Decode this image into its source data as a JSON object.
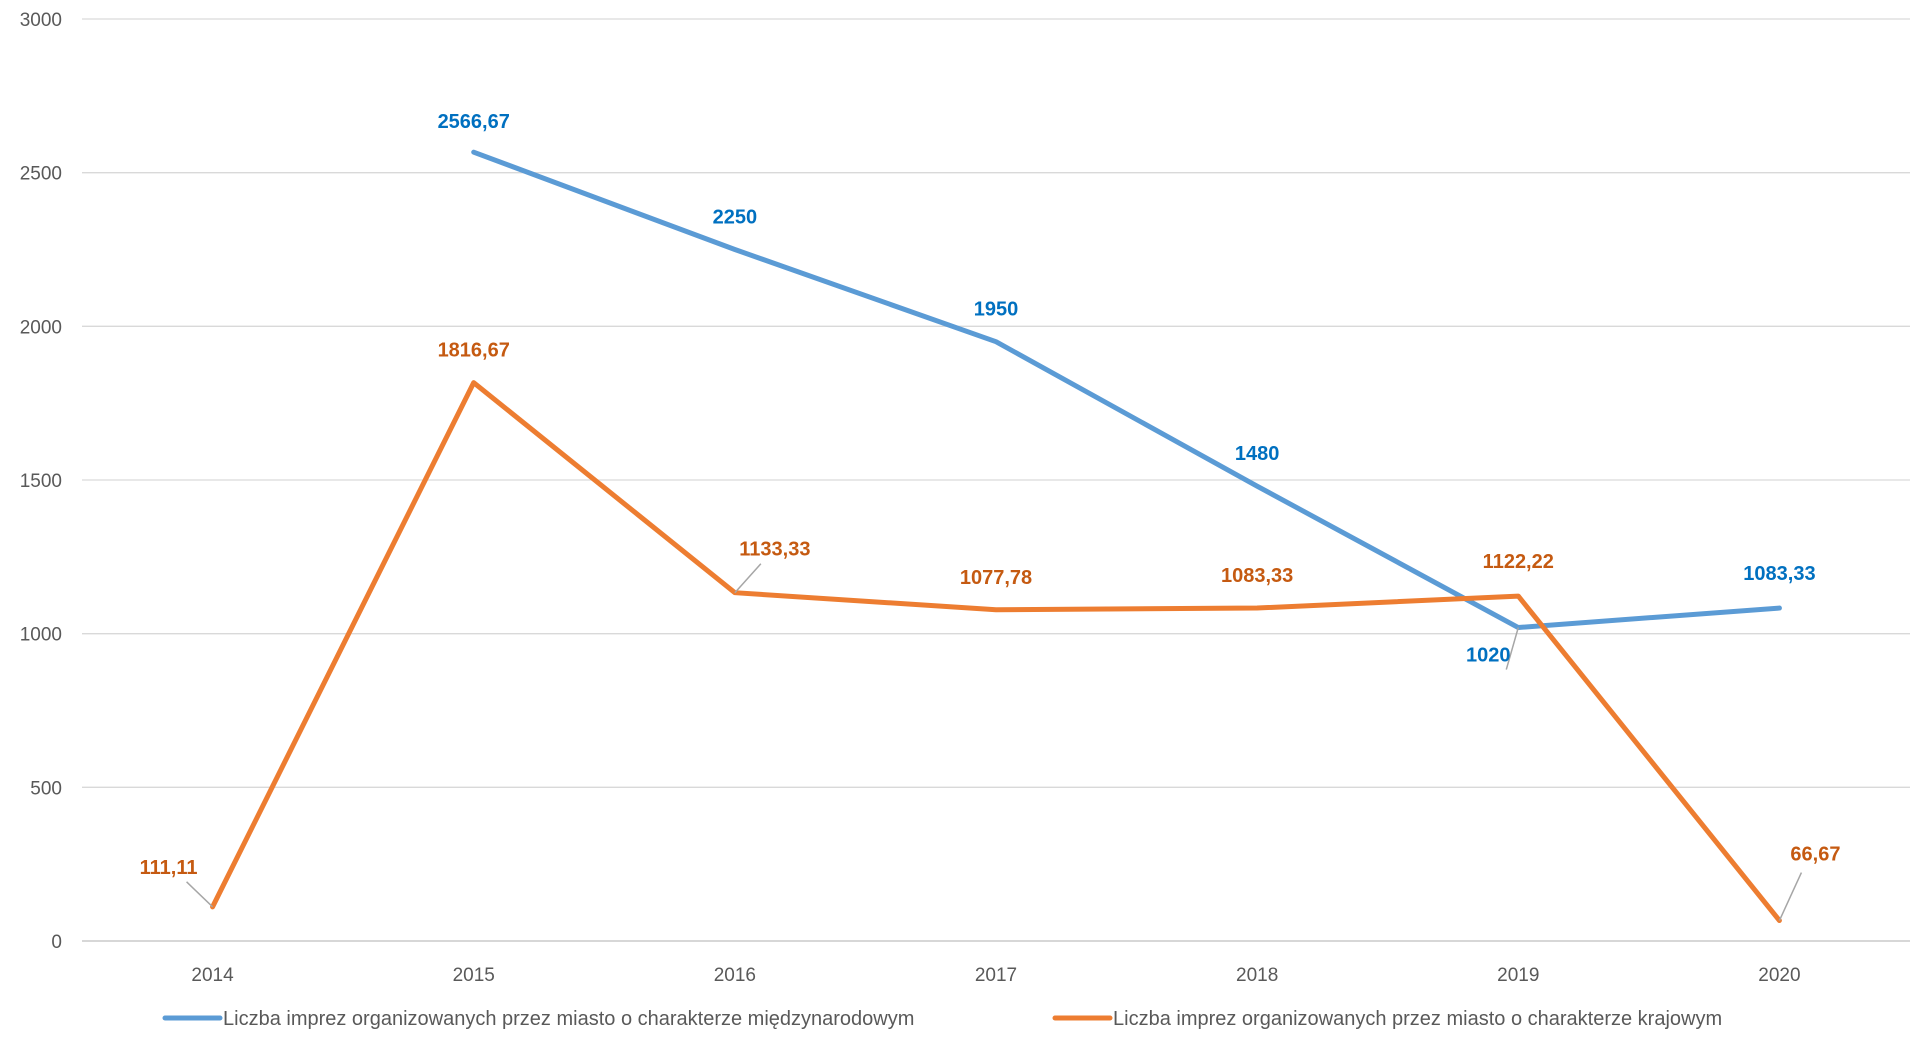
{
  "chart_data": {
    "type": "line",
    "title": "",
    "xlabel": "",
    "ylabel": "",
    "ylim": [
      0,
      3000
    ],
    "yticks": [
      "0",
      "500",
      "1000",
      "1500",
      "2000",
      "2500",
      "3000"
    ],
    "categories": [
      "2014",
      "2015",
      "2016",
      "2017",
      "2018",
      "2019",
      "2020"
    ],
    "grid": "horizontal",
    "legend_position": "bottom",
    "series": [
      {
        "name": "Liczba imprez organizowanych przez miasto o charakterze międzynarodowym",
        "color": "#5B9BD5",
        "label_color": "#0070C0",
        "values": [
          null,
          2566.67,
          2250,
          1950,
          1480,
          1020,
          1083.33
        ],
        "labels": [
          "",
          "2566,67",
          "2250",
          "1950",
          "1480",
          "1020",
          "1083,33"
        ]
      },
      {
        "name": "Liczba imprez organizowanych przez miasto o charakterze krajowym",
        "color": "#ED7D31",
        "label_color": "#C55A11",
        "values": [
          111.11,
          1816.67,
          1133.33,
          1077.78,
          1083.33,
          1122.22,
          66.67
        ],
        "labels": [
          "111,11",
          "1816,67",
          "1133,33",
          "1077,78",
          "1083,33",
          "1122,22",
          "66,67"
        ]
      }
    ]
  }
}
